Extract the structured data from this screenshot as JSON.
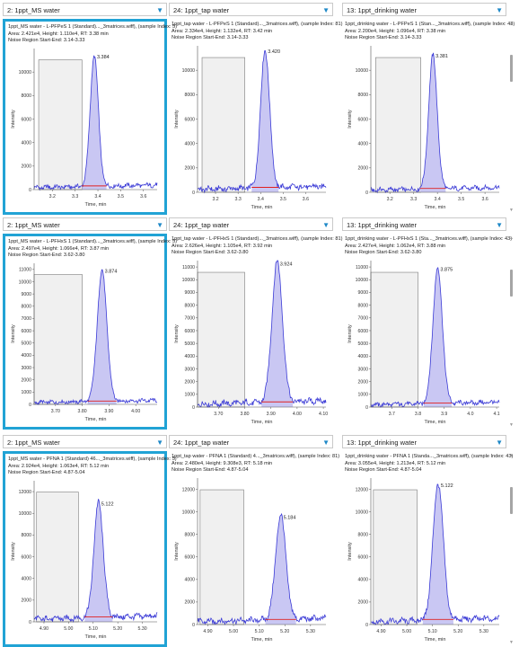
{
  "rows": [
    {
      "panels": [
        {
          "dropdown": "2: 1ppt_MS water",
          "line1": "1ppt_MS water - L-PFPeS 1 (Standard)..._3matrices.wiff), (sample Index: 5)",
          "line2": "Area: 2.421e4, Height: 1.110e4, RT: 3.38 min",
          "line3": "Noise Region Start-End: 3.14-3.33",
          "selected": true
        },
        {
          "dropdown": "24: 1ppt_tap water",
          "line1": "1ppt_tap water - L-PFPeS 1 (Standard)..._3matrices.wiff), (sample Index: 81)",
          "line2": "Area: 2.334e4, Height: 1.132e4, RT: 3.42 min",
          "line3": "Noise Region Start-End: 3.14-3.33",
          "selected": false
        },
        {
          "dropdown": "13: 1ppt_drinking water",
          "line1": "1ppt_drinking water - L-PFPeS 1 (Stan..._3matrices.wiff), (sample Index: 43)",
          "line2": "Area: 2.200e4, Height: 1.096e4, RT: 3.38 min",
          "line3": "Noise Region Start-End: 3.14-3.33",
          "selected": false
        }
      ]
    },
    {
      "panels": [
        {
          "dropdown": "2: 1ppt_MS water",
          "line1": "1ppt_MS water - L-PFHxS 1 (Standard)..._3matrices.wiff), (sample Index: 5)",
          "line2": "Area: 2.497e4, Height: 1.066e4, RT: 3.87 min",
          "line3": "Noise Region Start-End: 3.62-3.80",
          "selected": true
        },
        {
          "dropdown": "24: 1ppt_tap water",
          "line1": "1ppt_tap water - L-PFHxS 1 (Standard)..._3matrices.wiff), (sample Index: 81)",
          "line2": "Area: 2.626e4, Height: 1.105e4, RT: 3.92 min",
          "line3": "Noise Region Start-End: 3.62-3.80",
          "selected": false
        },
        {
          "dropdown": "13: 1ppt_drinking water",
          "line1": "1ppt_drinking water - L-PFHxS 1 (Sta..._3matrices.wiff), (sample Index: 43)",
          "line2": "Area: 2.427e4, Height: 1.062e4, RT: 3.88 min",
          "line3": "Noise Region Start-End: 3.62-3.80",
          "selected": false
        }
      ]
    },
    {
      "panels": [
        {
          "dropdown": "2: 1ppt_MS water",
          "line1": "1ppt_MS water - PFNA 1 (Standard) 46..._3matrices.wiff), (sample Index: 5)",
          "line2": "Area: 2.924e4, Height: 1.063e4, RT: 5.12 min",
          "line3": "Noise Region Start-End: 4.87-5.04",
          "selected": true
        },
        {
          "dropdown": "24: 1ppt_tap water",
          "line1": "1ppt_tap water - PFNA 1 (Standard) 4..._3matrices.wiff), (sample Index: 81)",
          "line2": "Area: 2.480e4, Height: 9.308e3, RT: 5.18 min",
          "line3": "Noise Region Start-End: 4.87-5.04",
          "selected": false
        },
        {
          "dropdown": "13: 1ppt_drinking water",
          "line1": "1ppt_drinking water - PFNA 1 (Standa..._3matrices.wiff), (sample Index: 43)",
          "line2": "Area: 3.055e4, Height: 1.213e4, RT: 5.12 min",
          "line3": "Noise Region Start-End: 4.87-5.04",
          "selected": false
        }
      ]
    }
  ],
  "chart_data": [
    {
      "type": "line",
      "panel": "row1-MS-water",
      "xlabel": "Time, min",
      "ylabel": "Intensity",
      "xlim": [
        3.12,
        3.66
      ],
      "ylim": [
        0,
        12000
      ],
      "xticks": [
        3.2,
        3.3,
        3.4,
        3.5,
        3.6
      ],
      "xtick_labels": [
        "3.2",
        "3.3",
        "3.4",
        "3.5",
        "3.6"
      ],
      "yticks": [
        0,
        2000,
        4000,
        6000,
        8000,
        10000
      ],
      "ytick_labels": [
        "0",
        "2000",
        "4000",
        "6000",
        "8000",
        "10000"
      ],
      "noise_region": [
        3.14,
        3.33
      ],
      "peak": {
        "rt": 3.384,
        "height": 11100,
        "width": 0.018,
        "label": "3.384"
      },
      "baseline_level": 350
    },
    {
      "type": "line",
      "panel": "row1-tap-water",
      "xlabel": "Time, min",
      "ylabel": "Intensity",
      "xlim": [
        3.12,
        3.69
      ],
      "ylim": [
        0,
        12000
      ],
      "xticks": [
        3.2,
        3.3,
        3.4,
        3.5,
        3.6
      ],
      "xtick_labels": [
        "3.2",
        "3.3",
        "3.4",
        "3.5",
        "3.6"
      ],
      "yticks": [
        0,
        2000,
        4000,
        6000,
        8000,
        10000
      ],
      "ytick_labels": [
        "0",
        "2000",
        "4000",
        "6000",
        "8000",
        "10000"
      ],
      "noise_region": [
        3.14,
        3.33
      ],
      "peak": {
        "rt": 3.42,
        "height": 11320,
        "width": 0.02,
        "label": "3.420"
      },
      "baseline_level": 450
    },
    {
      "type": "line",
      "panel": "row1-drinking-water",
      "xlabel": "Time, min",
      "ylabel": "Intensity",
      "xlim": [
        3.12,
        3.66
      ],
      "ylim": [
        0,
        12000
      ],
      "xticks": [
        3.2,
        3.3,
        3.4,
        3.5,
        3.6
      ],
      "xtick_labels": [
        "3.2",
        "3.3",
        "3.4",
        "3.5",
        "3.6"
      ],
      "yticks": [
        0,
        2000,
        4000,
        6000,
        8000,
        10000
      ],
      "ytick_labels": [
        "0",
        "2000",
        "4000",
        "6000",
        "8000",
        "10000"
      ],
      "noise_region": [
        3.14,
        3.33
      ],
      "peak": {
        "rt": 3.381,
        "height": 10960,
        "width": 0.018,
        "label": "3.381"
      },
      "baseline_level": 350
    },
    {
      "type": "line",
      "panel": "row2-MS-water",
      "xlabel": "Time, min",
      "ylabel": "Intensity",
      "xlim": [
        3.62,
        4.08
      ],
      "ylim": [
        0,
        11500
      ],
      "xticks": [
        3.7,
        3.8,
        3.9,
        4.0
      ],
      "xtick_labels": [
        "3.70",
        "3.80",
        "3.90",
        "4.00"
      ],
      "yticks": [
        0,
        1000,
        2000,
        3000,
        4000,
        5000,
        6000,
        7000,
        8000,
        9000,
        10000,
        11000
      ],
      "ytick_labels": [
        "0",
        "1000",
        "2000",
        "3000",
        "4000",
        "5000",
        "6000",
        "7000",
        "8000",
        "9000",
        "10000",
        "11000"
      ],
      "noise_region": [
        3.62,
        3.8
      ],
      "peak": {
        "rt": 3.874,
        "height": 10660,
        "width": 0.018,
        "label": "3.874"
      },
      "baseline_level": 300
    },
    {
      "type": "line",
      "panel": "row2-tap-water",
      "xlabel": "Time, min",
      "ylabel": "Intensity",
      "xlim": [
        3.62,
        4.11
      ],
      "ylim": [
        0,
        11500
      ],
      "xticks": [
        3.7,
        3.8,
        3.9,
        4.0,
        4.1
      ],
      "xtick_labels": [
        "3.70",
        "3.80",
        "3.90",
        "4.00",
        "4.10"
      ],
      "yticks": [
        0,
        1000,
        2000,
        3000,
        4000,
        5000,
        6000,
        7000,
        8000,
        9000,
        10000,
        11000
      ],
      "ytick_labels": [
        "0",
        "1000",
        "2000",
        "3000",
        "4000",
        "5000",
        "6000",
        "7000",
        "8000",
        "9000",
        "10000",
        "11000"
      ],
      "noise_region": [
        3.62,
        3.8
      ],
      "peak": {
        "rt": 3.924,
        "height": 11050,
        "width": 0.02,
        "label": "3.924"
      },
      "baseline_level": 450
    },
    {
      "type": "line",
      "panel": "row2-drinking-water",
      "xlabel": "Time, min",
      "ylabel": "Intensity",
      "xlim": [
        3.62,
        4.11
      ],
      "ylim": [
        0,
        11500
      ],
      "xticks": [
        3.7,
        3.8,
        3.9,
        4.0,
        4.1
      ],
      "xtick_labels": [
        "3.7",
        "3.8",
        "3.9",
        "4.0",
        "4.1"
      ],
      "yticks": [
        0,
        1000,
        2000,
        3000,
        4000,
        5000,
        6000,
        7000,
        8000,
        9000,
        10000,
        11000
      ],
      "ytick_labels": [
        "0",
        "1000",
        "2000",
        "3000",
        "4000",
        "5000",
        "6000",
        "7000",
        "8000",
        "9000",
        "10000",
        "11000"
      ],
      "noise_region": [
        3.62,
        3.8
      ],
      "peak": {
        "rt": 3.875,
        "height": 10620,
        "width": 0.018,
        "label": "3.875"
      },
      "baseline_level": 350
    },
    {
      "type": "line",
      "panel": "row3-MS-water",
      "xlabel": "Time, min",
      "ylabel": "Intensity",
      "xlim": [
        4.86,
        5.36
      ],
      "ylim": [
        0,
        13000
      ],
      "xticks": [
        4.9,
        5.0,
        5.1,
        5.2,
        5.3
      ],
      "xtick_labels": [
        "4.90",
        "5.00",
        "5.10",
        "5.20",
        "5.30"
      ],
      "yticks": [
        0,
        2000,
        4000,
        6000,
        8000,
        10000,
        12000
      ],
      "ytick_labels": [
        "0",
        "2000",
        "4000",
        "6000",
        "8000",
        "10000",
        "12000"
      ],
      "noise_region": [
        4.87,
        5.04
      ],
      "peak": {
        "rt": 5.122,
        "height": 10630,
        "width": 0.019,
        "label": "5.122"
      },
      "baseline_level": 500
    },
    {
      "type": "line",
      "panel": "row3-tap-water",
      "xlabel": "Time, min",
      "ylabel": "Intensity",
      "xlim": [
        4.86,
        5.36
      ],
      "ylim": [
        0,
        13000
      ],
      "xticks": [
        4.9,
        5.0,
        5.1,
        5.2,
        5.3
      ],
      "xtick_labels": [
        "4.90",
        "5.00",
        "5.10",
        "5.20",
        "5.30"
      ],
      "yticks": [
        0,
        2000,
        4000,
        6000,
        8000,
        10000,
        12000
      ],
      "ytick_labels": [
        "0",
        "2000",
        "4000",
        "6000",
        "8000",
        "10000",
        "12000"
      ],
      "noise_region": [
        4.87,
        5.04
      ],
      "peak": {
        "rt": 5.184,
        "height": 9308,
        "width": 0.02,
        "label": "5.184"
      },
      "baseline_level": 500
    },
    {
      "type": "line",
      "panel": "row3-drinking-water",
      "xlabel": "Time, min",
      "ylabel": "Intensity",
      "xlim": [
        4.86,
        5.36
      ],
      "ylim": [
        0,
        13000
      ],
      "xticks": [
        4.9,
        5.0,
        5.1,
        5.2,
        5.3
      ],
      "xtick_labels": [
        "4.90",
        "5.00",
        "5.10",
        "5.20",
        "5.30"
      ],
      "yticks": [
        0,
        2000,
        4000,
        6000,
        8000,
        10000,
        12000
      ],
      "ytick_labels": [
        "0",
        "2000",
        "4000",
        "6000",
        "8000",
        "10000",
        "12000"
      ],
      "noise_region": [
        4.87,
        5.04
      ],
      "peak": {
        "rt": 5.122,
        "height": 12130,
        "width": 0.02,
        "label": "5.122"
      },
      "baseline_level": 500
    }
  ],
  "colors": {
    "trace": "#3b3bd6",
    "fill": "#c9c7f3",
    "baseline": "#e02020",
    "noise_fill": "#f0f0f0",
    "noise_edge": "#7a7a7a",
    "selection": "#21a3d5",
    "chevron": "#1e88c7"
  }
}
